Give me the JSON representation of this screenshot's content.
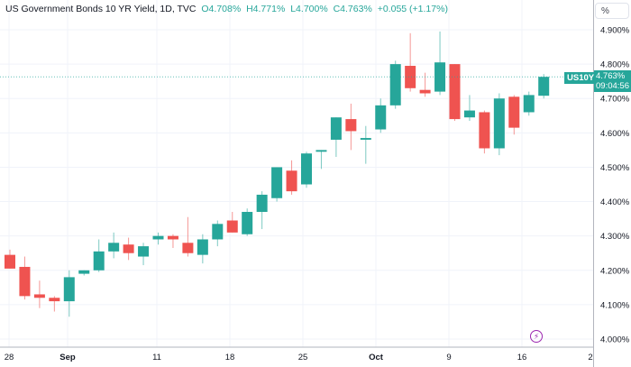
{
  "legend": {
    "symbol_title": "US Government Bonds 10 YR Yield, 1D, TVC",
    "open": "O4.708%",
    "high": "H4.771%",
    "low": "L4.700%",
    "close": "C4.763%",
    "change": "+0.055 (+1.17%)"
  },
  "price_scale": {
    "mode_button": "%",
    "ticks": [
      "4.900%",
      "4.800%",
      "4.700%",
      "4.600%",
      "4.500%",
      "4.400%",
      "4.300%",
      "4.200%",
      "4.100%",
      "4.000%"
    ],
    "last_price": "4.763%",
    "countdown": "09:04:56",
    "symbol_tag": "US10Y"
  },
  "time_scale": {
    "ticks": [
      "28",
      "Sep",
      "11",
      "18",
      "25",
      "Oct",
      "9",
      "16",
      "2"
    ]
  },
  "colors": {
    "up": "#26a69a",
    "down": "#ef5350",
    "grid": "#f0f3fa",
    "event_marker": "#9c27b0"
  },
  "event_marker_icon": "lightning-icon",
  "chart_data": {
    "type": "candlestick",
    "title": "US Government Bonds 10 YR Yield, 1D, TVC",
    "ylabel": "%",
    "ylim": [
      3.99,
      4.95
    ],
    "x_tick_labels": [
      "28",
      "Sep",
      "11",
      "18",
      "25",
      "Oct",
      "9",
      "16",
      "2"
    ],
    "candles": [
      {
        "open": 4.245,
        "high": 4.26,
        "low": 4.21,
        "close": 4.205
      },
      {
        "open": 4.21,
        "high": 4.24,
        "low": 4.115,
        "close": 4.125
      },
      {
        "open": 4.13,
        "high": 4.17,
        "low": 4.09,
        "close": 4.12
      },
      {
        "open": 4.12,
        "high": 4.125,
        "low": 4.08,
        "close": 4.11
      },
      {
        "open": 4.11,
        "high": 4.2,
        "low": 4.065,
        "close": 4.18
      },
      {
        "open": 4.19,
        "high": 4.2,
        "low": 4.185,
        "close": 4.2
      },
      {
        "open": 4.2,
        "high": 4.29,
        "low": 4.195,
        "close": 4.255
      },
      {
        "open": 4.255,
        "high": 4.31,
        "low": 4.235,
        "close": 4.28
      },
      {
        "open": 4.275,
        "high": 4.295,
        "low": 4.23,
        "close": 4.25
      },
      {
        "open": 4.24,
        "high": 4.28,
        "low": 4.215,
        "close": 4.27
      },
      {
        "open": 4.29,
        "high": 4.31,
        "low": 4.275,
        "close": 4.3
      },
      {
        "open": 4.3,
        "high": 4.305,
        "low": 4.265,
        "close": 4.29
      },
      {
        "open": 4.28,
        "high": 4.355,
        "low": 4.24,
        "close": 4.25
      },
      {
        "open": 4.245,
        "high": 4.305,
        "low": 4.22,
        "close": 4.29
      },
      {
        "open": 4.29,
        "high": 4.345,
        "low": 4.27,
        "close": 4.335
      },
      {
        "open": 4.345,
        "high": 4.37,
        "low": 4.31,
        "close": 4.31
      },
      {
        "open": 4.305,
        "high": 4.38,
        "low": 4.3,
        "close": 4.37
      },
      {
        "open": 4.37,
        "high": 4.43,
        "low": 4.32,
        "close": 4.42
      },
      {
        "open": 4.41,
        "high": 4.49,
        "low": 4.4,
        "close": 4.5
      },
      {
        "open": 4.49,
        "high": 4.52,
        "low": 4.42,
        "close": 4.43
      },
      {
        "open": 4.45,
        "high": 4.545,
        "low": 4.44,
        "close": 4.54
      },
      {
        "open": 4.545,
        "high": 4.54,
        "low": 4.495,
        "close": 4.55
      },
      {
        "open": 4.58,
        "high": 4.62,
        "low": 4.53,
        "close": 4.645
      },
      {
        "open": 4.64,
        "high": 4.685,
        "low": 4.55,
        "close": 4.605
      },
      {
        "open": 4.58,
        "high": 4.62,
        "low": 4.51,
        "close": 4.585
      },
      {
        "open": 4.61,
        "high": 4.7,
        "low": 4.6,
        "close": 4.68
      },
      {
        "open": 4.68,
        "high": 4.81,
        "low": 4.67,
        "close": 4.8
      },
      {
        "open": 4.795,
        "high": 4.89,
        "low": 4.72,
        "close": 4.73
      },
      {
        "open": 4.725,
        "high": 4.775,
        "low": 4.705,
        "close": 4.715
      },
      {
        "open": 4.72,
        "high": 4.895,
        "low": 4.71,
        "close": 4.805
      },
      {
        "open": 4.8,
        "high": 4.8,
        "low": 4.635,
        "close": 4.64
      },
      {
        "open": 4.645,
        "high": 4.71,
        "low": 4.635,
        "close": 4.665
      },
      {
        "open": 4.66,
        "high": 4.665,
        "low": 4.54,
        "close": 4.555
      },
      {
        "open": 4.555,
        "high": 4.715,
        "low": 4.535,
        "close": 4.7
      },
      {
        "open": 4.705,
        "high": 4.71,
        "low": 4.595,
        "close": 4.615
      },
      {
        "open": 4.66,
        "high": 4.72,
        "low": 4.65,
        "close": 4.71
      },
      {
        "open": 4.708,
        "high": 4.771,
        "low": 4.7,
        "close": 4.763
      }
    ]
  }
}
